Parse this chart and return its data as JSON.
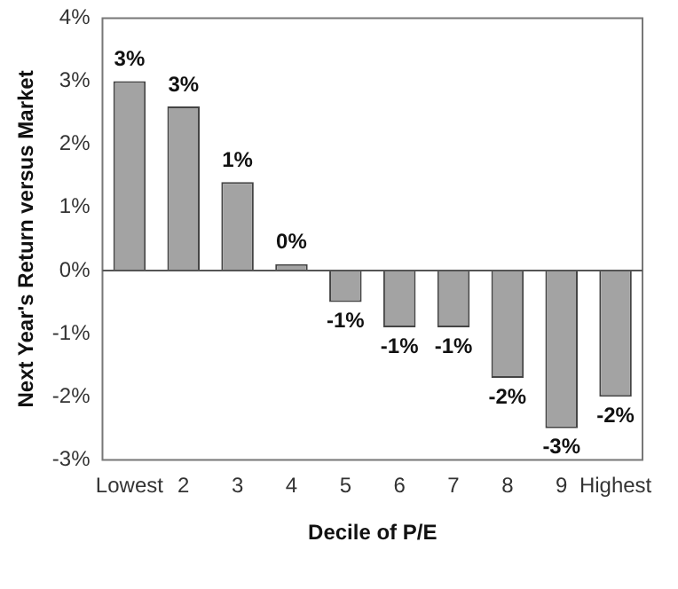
{
  "chart_data": {
    "type": "bar",
    "xlabel": "Decile of P/E",
    "ylabel": "Next Year's Return versus Market",
    "categories": [
      "Lowest",
      "2",
      "3",
      "4",
      "5",
      "6",
      "7",
      "8",
      "9",
      "Highest"
    ],
    "values": [
      3.0,
      2.6,
      1.4,
      0.1,
      -0.5,
      -0.9,
      -0.9,
      -1.7,
      -2.5,
      -2.0
    ],
    "value_labels": [
      "3%",
      "3%",
      "1%",
      "0%",
      "-1%",
      "-1%",
      "-1%",
      "-2%",
      "-3%",
      "-2%"
    ],
    "color": "#a3a3a3",
    "ylim": [
      -3,
      4
    ],
    "yticks": [
      {
        "value": -3,
        "label": "-3%"
      },
      {
        "value": -2,
        "label": "-2%"
      },
      {
        "value": -1,
        "label": "-1%"
      },
      {
        "value": 0,
        "label": "0%"
      },
      {
        "value": 1,
        "label": "1%"
      },
      {
        "value": 2,
        "label": "2%"
      },
      {
        "value": 3,
        "label": "3%"
      },
      {
        "value": 4,
        "label": "4%"
      }
    ],
    "legend": false
  }
}
